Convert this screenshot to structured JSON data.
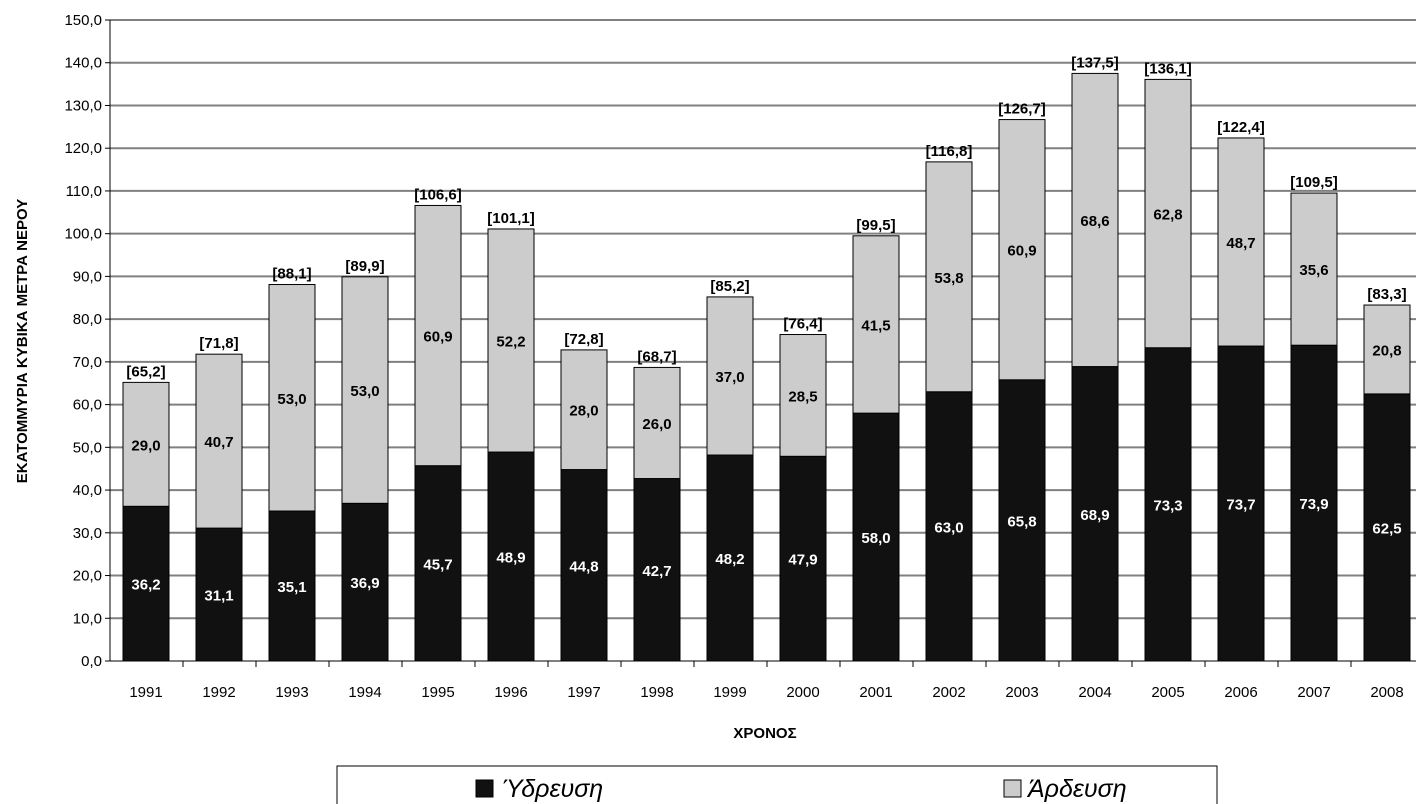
{
  "chart_data": {
    "type": "bar",
    "stacked": true,
    "title": "",
    "xlabel": "ΧΡΟΝΟΣ",
    "ylabel": "ΕΚΑΤΟΜΜΥΡΙΑ ΚΥΒΙΚΑ ΜΕΤΡΑ ΝΕΡΟΥ",
    "ylim": [
      0,
      150
    ],
    "ytick_step": 10,
    "ytick_labels": [
      "0,0",
      "10,0",
      "20,0",
      "30,0",
      "40,0",
      "50,0",
      "60,0",
      "70,0",
      "80,0",
      "90,0",
      "100,0",
      "110,0",
      "120,0",
      "130,0",
      "140,0",
      "150,0"
    ],
    "grid": true,
    "legend_position": "bottom",
    "categories": [
      "1991",
      "1992",
      "1993",
      "1994",
      "1995",
      "1996",
      "1997",
      "1998",
      "1999",
      "2000",
      "2001",
      "2002",
      "2003",
      "2004",
      "2005",
      "2006",
      "2007",
      "2008"
    ],
    "series": [
      {
        "name": "Ύδρευση",
        "color": "#111111",
        "label_color": "#ffffff",
        "values": [
          36.2,
          31.1,
          35.1,
          36.9,
          45.7,
          48.9,
          44.8,
          42.7,
          48.2,
          47.9,
          58.0,
          63.0,
          65.8,
          68.9,
          73.3,
          73.7,
          73.9,
          62.5
        ],
        "labels": [
          "36,2",
          "31,1",
          "35,1",
          "36,9",
          "45,7",
          "48,9",
          "44,8",
          "42,7",
          "48,2",
          "47,9",
          "58,0",
          "63,0",
          "65,8",
          "68,9",
          "73,3",
          "73,7",
          "73,9",
          "62,5"
        ]
      },
      {
        "name": "Άρδευση",
        "color": "#cccccc",
        "label_color": "#000000",
        "values": [
          29.0,
          40.7,
          53.0,
          53.0,
          60.9,
          52.2,
          28.0,
          26.0,
          37.0,
          28.5,
          41.5,
          53.8,
          60.9,
          68.6,
          62.8,
          48.7,
          35.6,
          20.8
        ],
        "labels": [
          "29,0",
          "40,7",
          "53,0",
          "53,0",
          "60,9",
          "52,2",
          "28,0",
          "26,0",
          "37,0",
          "28,5",
          "41,5",
          "53,8",
          "60,9",
          "68,6",
          "62,8",
          "48,7",
          "35,6",
          "20,8"
        ]
      }
    ],
    "totals": [
      65.2,
      71.8,
      88.1,
      89.9,
      106.6,
      101.1,
      72.8,
      68.7,
      85.2,
      76.4,
      99.5,
      116.8,
      126.7,
      137.5,
      136.1,
      122.4,
      109.5,
      83.3
    ],
    "total_labels": [
      "[65,2]",
      "[71,8]",
      "[88,1]",
      "[89,9]",
      "[106,6]",
      "[101,1]",
      "[72,8]",
      "[68,7]",
      "[85,2]",
      "[76,4]",
      "[99,5]",
      "[116,8]",
      "[126,7]",
      "[137,5]",
      "[136,1]",
      "[122,4]",
      "[109,5]",
      "[83,3]"
    ]
  }
}
